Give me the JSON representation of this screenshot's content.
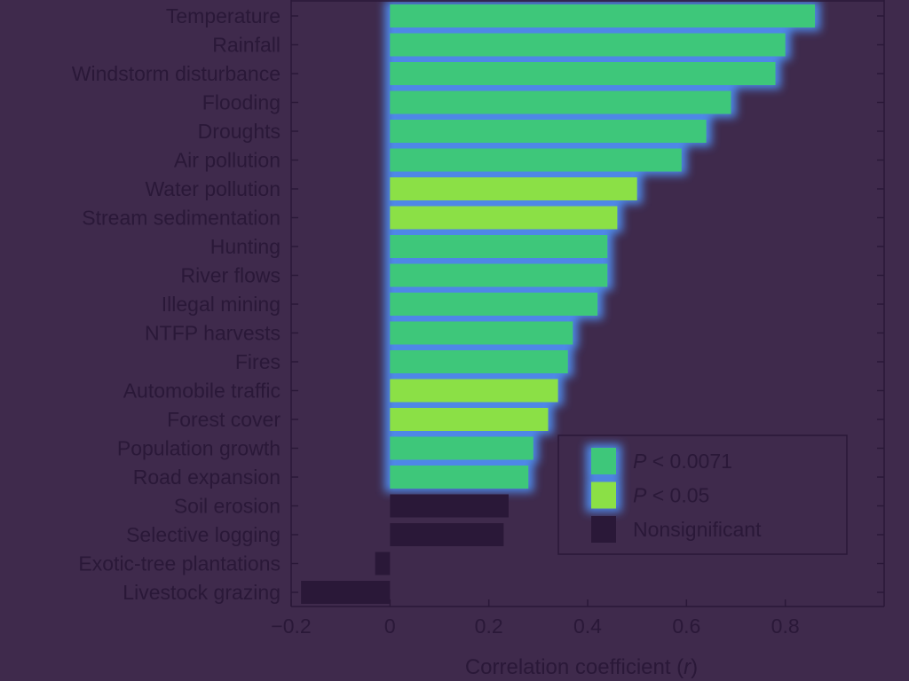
{
  "chart_data": {
    "type": "bar",
    "orientation": "horizontal",
    "categories": [
      "Temperature",
      "Rainfall",
      "Windstorm disturbance",
      "Flooding",
      "Droughts",
      "Air pollution",
      "Water pollution",
      "Stream sedimentation",
      "Hunting",
      "River flows",
      "Illegal mining",
      "NTFP harvests",
      "Fires",
      "Automobile traffic",
      "Forest cover",
      "Population growth",
      "Road expansion",
      "Soil erosion",
      "Selective logging",
      "Exotic-tree plantations",
      "Livestock grazing"
    ],
    "values": [
      0.86,
      0.8,
      0.78,
      0.69,
      0.64,
      0.59,
      0.5,
      0.46,
      0.44,
      0.44,
      0.42,
      0.37,
      0.36,
      0.34,
      0.32,
      0.29,
      0.28,
      0.24,
      0.23,
      -0.03,
      -0.18
    ],
    "significance": [
      "p0071",
      "p0071",
      "p0071",
      "p0071",
      "p0071",
      "p0071",
      "p05",
      "p05",
      "p0071",
      "p0071",
      "p0071",
      "p0071",
      "p0071",
      "p05",
      "p05",
      "p0071",
      "p0071",
      "ns",
      "ns",
      "ns",
      "ns"
    ],
    "xlabel_prefix": "Correlation coefficient (",
    "xlabel_var": "r",
    "xlabel_suffix": ")",
    "xlim": [
      -0.2,
      1.0
    ],
    "xticks": [
      -0.2,
      0,
      0.2,
      0.4,
      0.6,
      0.8
    ],
    "xtick_labels": [
      "−0.2",
      "0",
      "0.2",
      "0.4",
      "0.6",
      "0.8"
    ],
    "grid": false,
    "legend": {
      "placement": "lower-right",
      "entries": [
        {
          "key": "p0071",
          "italic": "P",
          "text": " < 0.0071"
        },
        {
          "key": "p05",
          "italic": "P",
          "text": " < 0.05"
        },
        {
          "key": "ns",
          "italic": "",
          "text": "Nonsignificant"
        }
      ]
    },
    "colors": {
      "p0071": "#3ec77a",
      "p05": "#8be046",
      "ns": "#2a1838",
      "halo": "#4f8df0",
      "background": "#3f2a4c",
      "text": "#2a1838"
    }
  }
}
